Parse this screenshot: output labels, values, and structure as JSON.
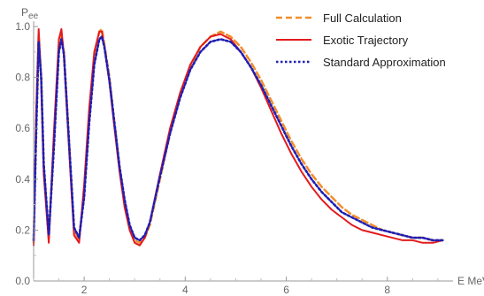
{
  "chart_data": {
    "type": "line",
    "xlabel": "E MeV",
    "ylabel": "P",
    "ylabel_sub": "ee",
    "xlim": [
      1.0,
      9.3
    ],
    "ylim": [
      0.0,
      1.0
    ],
    "x_ticks": [
      2,
      4,
      6,
      8
    ],
    "y_ticks": [
      0.0,
      0.2,
      0.4,
      0.6,
      0.8,
      1.0
    ],
    "x_tick_labels": [
      "2",
      "4",
      "6",
      "8"
    ],
    "y_tick_labels": [
      "0.0",
      "0.2",
      "0.4",
      "0.6",
      "0.8",
      "1.0"
    ],
    "legend_position": "top-right",
    "series": [
      {
        "name": "Full Calculation",
        "color": "#f28e2b",
        "dash": "dashed",
        "x": [
          1.0,
          1.05,
          1.1,
          1.15,
          1.2,
          1.3,
          1.4,
          1.5,
          1.55,
          1.6,
          1.7,
          1.8,
          1.9,
          2.0,
          2.1,
          2.2,
          2.3,
          2.35,
          2.4,
          2.5,
          2.6,
          2.7,
          2.8,
          2.9,
          3.0,
          3.1,
          3.2,
          3.3,
          3.5,
          3.7,
          3.9,
          4.1,
          4.3,
          4.5,
          4.7,
          4.9,
          5.1,
          5.3,
          5.5,
          5.7,
          5.9,
          6.1,
          6.3,
          6.5,
          6.7,
          6.9,
          7.1,
          7.3,
          7.5,
          7.7,
          7.9,
          8.1,
          8.3,
          8.5,
          8.7,
          8.9,
          9.1
        ],
        "y": [
          0.15,
          0.62,
          0.97,
          0.8,
          0.45,
          0.17,
          0.55,
          0.92,
          0.97,
          0.9,
          0.55,
          0.2,
          0.16,
          0.35,
          0.65,
          0.88,
          0.98,
          0.99,
          0.93,
          0.8,
          0.62,
          0.45,
          0.31,
          0.21,
          0.16,
          0.15,
          0.17,
          0.22,
          0.4,
          0.58,
          0.73,
          0.84,
          0.92,
          0.96,
          0.98,
          0.96,
          0.92,
          0.86,
          0.79,
          0.71,
          0.63,
          0.55,
          0.48,
          0.42,
          0.37,
          0.33,
          0.29,
          0.26,
          0.24,
          0.22,
          0.2,
          0.19,
          0.18,
          0.17,
          0.17,
          0.16,
          0.16
        ]
      },
      {
        "name": "Exotic Trajectory",
        "color": "#e41a1c",
        "dash": "solid",
        "x": [
          1.0,
          1.05,
          1.1,
          1.15,
          1.2,
          1.3,
          1.4,
          1.5,
          1.55,
          1.6,
          1.7,
          1.8,
          1.9,
          2.0,
          2.1,
          2.2,
          2.3,
          2.35,
          2.4,
          2.5,
          2.6,
          2.7,
          2.8,
          2.9,
          3.0,
          3.1,
          3.2,
          3.3,
          3.5,
          3.7,
          3.9,
          4.1,
          4.3,
          4.5,
          4.7,
          4.9,
          5.1,
          5.3,
          5.5,
          5.7,
          5.9,
          6.1,
          6.3,
          6.5,
          6.7,
          6.9,
          7.1,
          7.3,
          7.5,
          7.7,
          7.9,
          8.1,
          8.3,
          8.5,
          8.7,
          8.9,
          9.1
        ],
        "y": [
          0.14,
          0.66,
          0.99,
          0.78,
          0.42,
          0.15,
          0.58,
          0.95,
          0.99,
          0.88,
          0.52,
          0.18,
          0.15,
          0.38,
          0.68,
          0.9,
          0.98,
          0.98,
          0.92,
          0.78,
          0.6,
          0.43,
          0.29,
          0.2,
          0.15,
          0.14,
          0.17,
          0.23,
          0.42,
          0.6,
          0.74,
          0.85,
          0.92,
          0.96,
          0.97,
          0.95,
          0.9,
          0.84,
          0.76,
          0.67,
          0.58,
          0.5,
          0.43,
          0.37,
          0.32,
          0.28,
          0.25,
          0.22,
          0.2,
          0.19,
          0.18,
          0.17,
          0.16,
          0.16,
          0.15,
          0.15,
          0.16
        ]
      },
      {
        "name": "Standard Approximation",
        "color": "#1f1fb4",
        "dash": "dotted",
        "x": [
          1.0,
          1.05,
          1.1,
          1.15,
          1.2,
          1.3,
          1.4,
          1.5,
          1.55,
          1.6,
          1.7,
          1.8,
          1.9,
          2.0,
          2.1,
          2.2,
          2.3,
          2.35,
          2.4,
          2.5,
          2.6,
          2.7,
          2.8,
          2.9,
          3.0,
          3.1,
          3.2,
          3.3,
          3.5,
          3.7,
          3.9,
          4.1,
          4.3,
          4.5,
          4.7,
          4.9,
          5.1,
          5.3,
          5.5,
          5.7,
          5.9,
          6.1,
          6.3,
          6.5,
          6.7,
          6.9,
          7.1,
          7.3,
          7.5,
          7.7,
          7.9,
          8.1,
          8.3,
          8.5,
          8.7,
          8.9,
          9.1
        ],
        "y": [
          0.16,
          0.58,
          0.94,
          0.8,
          0.46,
          0.18,
          0.52,
          0.9,
          0.95,
          0.89,
          0.55,
          0.21,
          0.17,
          0.33,
          0.62,
          0.85,
          0.95,
          0.96,
          0.92,
          0.79,
          0.62,
          0.45,
          0.32,
          0.22,
          0.17,
          0.16,
          0.18,
          0.23,
          0.41,
          0.58,
          0.72,
          0.83,
          0.9,
          0.94,
          0.95,
          0.94,
          0.9,
          0.84,
          0.77,
          0.69,
          0.61,
          0.53,
          0.46,
          0.4,
          0.35,
          0.31,
          0.27,
          0.25,
          0.23,
          0.21,
          0.2,
          0.19,
          0.18,
          0.17,
          0.17,
          0.16,
          0.16
        ]
      }
    ]
  }
}
